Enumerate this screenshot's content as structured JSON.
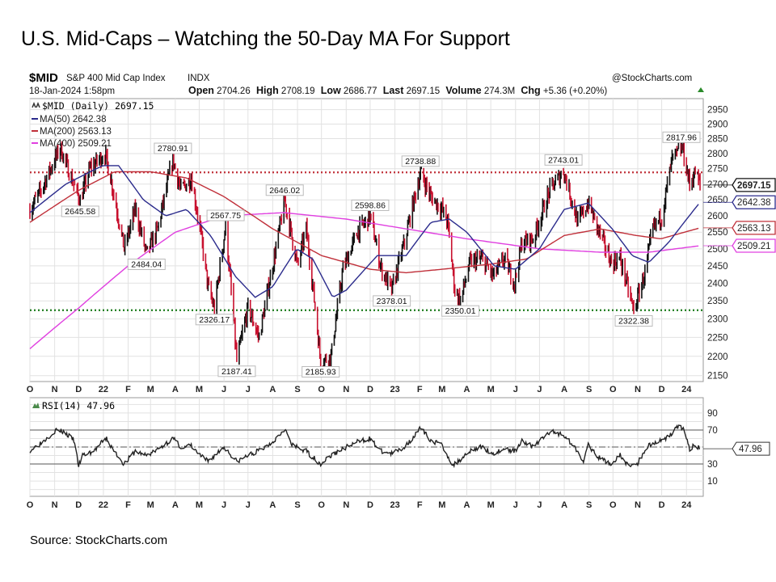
{
  "slide": {
    "title": "U.S. Mid-Caps – Watching the 50-Day MA For Support",
    "source": "Source: StockCharts.com"
  },
  "chart_header": {
    "symbol": "$MID",
    "name": "S&P 400 Mid Cap Index",
    "exchange": "INDX",
    "datetime": "18-Jan-2024 1:58pm",
    "open_label": "Open",
    "open": "2704.26",
    "high_label": "High",
    "high": "2708.19",
    "low_label": "Low",
    "low": "2686.77",
    "last_label": "Last",
    "last": "2697.15",
    "volume_label": "Volume",
    "volume": "274.3M",
    "chg_label": "Chg",
    "chg": "+5.36 (+0.20%)",
    "watermark": "@StockCharts.com"
  },
  "colors": {
    "up_bar": "#111111",
    "down_bar": "#c8102e",
    "ma50": "#2b2b8c",
    "ma200": "#c0303a",
    "ma400": "#e040e0",
    "resistance": "#c0303a",
    "support": "#1a7a1a",
    "grid": "#e2e2e2",
    "rsi": "#222222"
  },
  "chart_data": [
    {
      "type": "line",
      "subtype": "ohlc-price-with-moving-averages",
      "y_scale": "log",
      "ylim": [
        2135,
        2989
      ],
      "xlim": [
        "2021-10-01",
        "2024-01-22"
      ],
      "grid": true,
      "legend_placement": "top-left",
      "legend": [
        {
          "label": "$MID (Daily) 2697.15",
          "icon": "ohlc-icon"
        },
        {
          "label": "MA(50) 2642.38",
          "color": "#2b2b8c"
        },
        {
          "label": "MA(200) 2563.13",
          "color": "#c0303a"
        },
        {
          "label": "MA(400) 2509.21",
          "color": "#e040e0"
        }
      ],
      "y_ticks": [
        "2150",
        "2200",
        "2250",
        "2300",
        "2350",
        "2400",
        "2450",
        "2500",
        "2550",
        "2600",
        "2650",
        "2700",
        "2750",
        "2800",
        "2850",
        "2900",
        "2950"
      ],
      "x_ticks": [
        {
          "label": "O",
          "date": "2021-10-01"
        },
        {
          "label": "N",
          "date": "2021-11-01"
        },
        {
          "label": "D",
          "date": "2021-12-01"
        },
        {
          "label": "22",
          "date": "2022-01-01"
        },
        {
          "label": "F",
          "date": "2022-02-01"
        },
        {
          "label": "M",
          "date": "2022-03-01"
        },
        {
          "label": "A",
          "date": "2022-04-01"
        },
        {
          "label": "M",
          "date": "2022-05-01"
        },
        {
          "label": "J",
          "date": "2022-06-01"
        },
        {
          "label": "J",
          "date": "2022-07-01"
        },
        {
          "label": "A",
          "date": "2022-08-01"
        },
        {
          "label": "S",
          "date": "2022-09-01"
        },
        {
          "label": "O",
          "date": "2022-10-01"
        },
        {
          "label": "N",
          "date": "2022-11-01"
        },
        {
          "label": "D",
          "date": "2022-12-01"
        },
        {
          "label": "23",
          "date": "2023-01-01"
        },
        {
          "label": "F",
          "date": "2023-02-01"
        },
        {
          "label": "M",
          "date": "2023-03-01"
        },
        {
          "label": "A",
          "date": "2023-04-01"
        },
        {
          "label": "M",
          "date": "2023-05-01"
        },
        {
          "label": "J",
          "date": "2023-06-01"
        },
        {
          "label": "J",
          "date": "2023-07-01"
        },
        {
          "label": "A",
          "date": "2023-08-01"
        },
        {
          "label": "S",
          "date": "2023-09-01"
        },
        {
          "label": "O",
          "date": "2023-10-01"
        },
        {
          "label": "N",
          "date": "2023-11-01"
        },
        {
          "label": "D",
          "date": "2023-12-01"
        },
        {
          "label": "24",
          "date": "2024-01-01"
        }
      ],
      "price": [
        [
          "2021-10-01",
          2620
        ],
        [
          "2021-10-15",
          2680
        ],
        [
          "2021-11-08",
          2820
        ],
        [
          "2021-11-26",
          2690
        ],
        [
          "2021-12-03",
          2646
        ],
        [
          "2021-12-15",
          2750
        ],
        [
          "2022-01-03",
          2800
        ],
        [
          "2022-01-10",
          2720
        ],
        [
          "2022-01-27",
          2500
        ],
        [
          "2022-02-10",
          2620
        ],
        [
          "2022-02-24",
          2484
        ],
        [
          "2022-03-10",
          2560
        ],
        [
          "2022-03-29",
          2780
        ],
        [
          "2022-04-08",
          2680
        ],
        [
          "2022-04-21",
          2720
        ],
        [
          "2022-05-02",
          2560
        ],
        [
          "2022-05-12",
          2390
        ],
        [
          "2022-05-20",
          2326
        ],
        [
          "2022-06-03",
          2567
        ],
        [
          "2022-06-17",
          2187
        ],
        [
          "2022-07-01",
          2330
        ],
        [
          "2022-07-15",
          2250
        ],
        [
          "2022-08-01",
          2450
        ],
        [
          "2022-08-16",
          2646
        ],
        [
          "2022-09-01",
          2450
        ],
        [
          "2022-09-12",
          2560
        ],
        [
          "2022-09-30",
          2186
        ],
        [
          "2022-10-13",
          2200
        ],
        [
          "2022-10-28",
          2440
        ],
        [
          "2022-11-15",
          2550
        ],
        [
          "2022-12-01",
          2598
        ],
        [
          "2022-12-15",
          2440
        ],
        [
          "2022-12-28",
          2378
        ],
        [
          "2023-01-13",
          2520
        ],
        [
          "2023-02-02",
          2738
        ],
        [
          "2023-02-15",
          2660
        ],
        [
          "2023-03-01",
          2620
        ],
        [
          "2023-03-08",
          2580
        ],
        [
          "2023-03-17",
          2380
        ],
        [
          "2023-03-24",
          2350
        ],
        [
          "2023-04-05",
          2460
        ],
        [
          "2023-04-20",
          2470
        ],
        [
          "2023-05-04",
          2420
        ],
        [
          "2023-05-18",
          2470
        ],
        [
          "2023-05-31",
          2400
        ],
        [
          "2023-06-09",
          2520
        ],
        [
          "2023-06-23",
          2530
        ],
        [
          "2023-07-14",
          2680
        ],
        [
          "2023-07-31",
          2743
        ],
        [
          "2023-08-18",
          2580
        ],
        [
          "2023-08-31",
          2640
        ],
        [
          "2023-09-12",
          2560
        ],
        [
          "2023-09-29",
          2460
        ],
        [
          "2023-10-10",
          2470
        ],
        [
          "2023-10-27",
          2322
        ],
        [
          "2023-11-10",
          2430
        ],
        [
          "2023-11-20",
          2560
        ],
        [
          "2023-12-01",
          2600
        ],
        [
          "2023-12-14",
          2780
        ],
        [
          "2023-12-27",
          2818
        ],
        [
          "2024-01-05",
          2700
        ],
        [
          "2024-01-12",
          2740
        ],
        [
          "2024-01-18",
          2697
        ]
      ],
      "ma50": [
        [
          "2021-10-01",
          2610
        ],
        [
          "2021-11-15",
          2700
        ],
        [
          "2021-12-31",
          2760
        ],
        [
          "2022-01-20",
          2760
        ],
        [
          "2022-02-20",
          2650
        ],
        [
          "2022-03-20",
          2600
        ],
        [
          "2022-04-15",
          2620
        ],
        [
          "2022-05-15",
          2540
        ],
        [
          "2022-06-15",
          2420
        ],
        [
          "2022-07-10",
          2360
        ],
        [
          "2022-08-01",
          2390
        ],
        [
          "2022-08-31",
          2500
        ],
        [
          "2022-09-20",
          2470
        ],
        [
          "2022-10-15",
          2360
        ],
        [
          "2022-11-01",
          2380
        ],
        [
          "2022-12-10",
          2480
        ],
        [
          "2023-01-15",
          2480
        ],
        [
          "2023-02-15",
          2580
        ],
        [
          "2023-03-10",
          2590
        ],
        [
          "2023-04-01",
          2550
        ],
        [
          "2023-05-05",
          2450
        ],
        [
          "2023-06-01",
          2440
        ],
        [
          "2023-07-01",
          2500
        ],
        [
          "2023-08-01",
          2620
        ],
        [
          "2023-08-31",
          2640
        ],
        [
          "2023-09-30",
          2560
        ],
        [
          "2023-10-25",
          2480
        ],
        [
          "2023-11-15",
          2460
        ],
        [
          "2023-12-10",
          2520
        ],
        [
          "2024-01-18",
          2642.38
        ]
      ],
      "ma200": [
        [
          "2021-10-01",
          2580
        ],
        [
          "2021-12-01",
          2680
        ],
        [
          "2022-01-15",
          2740
        ],
        [
          "2022-03-01",
          2740
        ],
        [
          "2022-04-15",
          2720
        ],
        [
          "2022-06-01",
          2660
        ],
        [
          "2022-08-01",
          2560
        ],
        [
          "2022-10-01",
          2480
        ],
        [
          "2022-12-01",
          2440
        ],
        [
          "2023-01-15",
          2430
        ],
        [
          "2023-03-01",
          2440
        ],
        [
          "2023-05-01",
          2455
        ],
        [
          "2023-06-15",
          2470
        ],
        [
          "2023-08-01",
          2540
        ],
        [
          "2023-09-15",
          2560
        ],
        [
          "2023-10-30",
          2540
        ],
        [
          "2023-11-30",
          2530
        ],
        [
          "2024-01-18",
          2563.13
        ]
      ],
      "ma400": [
        [
          "2021-10-01",
          2220
        ],
        [
          "2021-12-01",
          2330
        ],
        [
          "2022-02-01",
          2450
        ],
        [
          "2022-04-01",
          2550
        ],
        [
          "2022-06-01",
          2600
        ],
        [
          "2022-08-15",
          2610
        ],
        [
          "2022-11-01",
          2590
        ],
        [
          "2023-01-15",
          2560
        ],
        [
          "2023-04-01",
          2530
        ],
        [
          "2023-07-01",
          2500
        ],
        [
          "2023-09-15",
          2490
        ],
        [
          "2023-11-15",
          2490
        ],
        [
          "2024-01-18",
          2509.21
        ]
      ],
      "horizontal_lines": [
        {
          "value": 2738,
          "style": "dotted",
          "color": "#c0303a"
        },
        {
          "value": 2324,
          "style": "dotted",
          "color": "#1a7a1a"
        }
      ],
      "annotations": [
        {
          "text": "2645.58",
          "date": "2021-12-03",
          "position": "below"
        },
        {
          "text": "2780.91",
          "date": "2022-03-29",
          "position": "above"
        },
        {
          "text": "2484.04",
          "date": "2022-02-24",
          "position": "below"
        },
        {
          "text": "2567.75",
          "date": "2022-06-03",
          "position": "above"
        },
        {
          "text": "2326.17",
          "date": "2022-05-20",
          "position": "below"
        },
        {
          "text": "2187.41",
          "date": "2022-06-17",
          "position": "below"
        },
        {
          "text": "2646.02",
          "date": "2022-08-16",
          "position": "above"
        },
        {
          "text": "2185.93",
          "date": "2022-09-30",
          "position": "below"
        },
        {
          "text": "2598.86",
          "date": "2022-12-01",
          "position": "above"
        },
        {
          "text": "2378.01",
          "date": "2022-12-28",
          "position": "below"
        },
        {
          "text": "2738.88",
          "date": "2023-02-02",
          "position": "above"
        },
        {
          "text": "2350.01",
          "date": "2023-03-24",
          "position": "below"
        },
        {
          "text": "2743.01",
          "date": "2023-07-31",
          "position": "above"
        },
        {
          "text": "2322.38",
          "date": "2023-10-27",
          "position": "below"
        },
        {
          "text": "2817.96",
          "date": "2023-12-27",
          "position": "above"
        }
      ],
      "value_tags": [
        {
          "text": "2697.15",
          "color": "#111111",
          "value": 2697.15
        },
        {
          "text": "2642.38",
          "color": "#2b2b8c",
          "value": 2642.38
        },
        {
          "text": "2563.13",
          "color": "#c0303a",
          "value": 2563.13
        },
        {
          "text": "2509.21",
          "color": "#e040e0",
          "value": 2509.21
        }
      ]
    },
    {
      "type": "line",
      "subtype": "rsi",
      "legend": "RSI(14) 47.96",
      "ylim": [
        -8,
        108
      ],
      "y_ticks": [
        "90",
        "70",
        "30",
        "10"
      ],
      "reference_lines": [
        70,
        50,
        30
      ],
      "value_tag": "47.96",
      "rsi": [
        [
          "2021-10-01",
          46
        ],
        [
          "2021-10-15",
          55
        ],
        [
          "2021-11-03",
          70
        ],
        [
          "2021-11-12",
          68
        ],
        [
          "2021-11-25",
          58
        ],
        [
          "2021-12-01",
          28
        ],
        [
          "2021-12-06",
          40
        ],
        [
          "2021-12-20",
          45
        ],
        [
          "2021-12-30",
          55
        ],
        [
          "2022-01-05",
          60
        ],
        [
          "2022-01-12",
          48
        ],
        [
          "2022-01-27",
          30
        ],
        [
          "2022-02-10",
          45
        ],
        [
          "2022-02-24",
          40
        ],
        [
          "2022-03-10",
          47
        ],
        [
          "2022-03-29",
          60
        ],
        [
          "2022-04-10",
          48
        ],
        [
          "2022-04-20",
          52
        ],
        [
          "2022-05-02",
          40
        ],
        [
          "2022-05-12",
          33
        ],
        [
          "2022-06-01",
          50
        ],
        [
          "2022-06-17",
          33
        ],
        [
          "2022-07-01",
          40
        ],
        [
          "2022-07-20",
          48
        ],
        [
          "2022-08-03",
          58
        ],
        [
          "2022-08-16",
          72
        ],
        [
          "2022-08-25",
          52
        ],
        [
          "2022-09-12",
          45
        ],
        [
          "2022-09-30",
          30
        ],
        [
          "2022-10-10",
          38
        ],
        [
          "2022-10-28",
          48
        ],
        [
          "2022-11-15",
          56
        ],
        [
          "2022-11-30",
          60
        ],
        [
          "2022-12-15",
          45
        ],
        [
          "2022-12-28",
          42
        ],
        [
          "2023-01-13",
          50
        ],
        [
          "2023-02-02",
          72
        ],
        [
          "2023-02-15",
          58
        ],
        [
          "2023-03-01",
          52
        ],
        [
          "2023-03-15",
          28
        ],
        [
          "2023-04-05",
          46
        ],
        [
          "2023-04-20",
          50
        ],
        [
          "2023-05-04",
          42
        ],
        [
          "2023-05-18",
          48
        ],
        [
          "2023-05-31",
          45
        ],
        [
          "2023-06-09",
          58
        ],
        [
          "2023-06-23",
          50
        ],
        [
          "2023-07-14",
          68
        ],
        [
          "2023-07-31",
          65
        ],
        [
          "2023-08-18",
          45
        ],
        [
          "2023-08-25",
          34
        ],
        [
          "2023-08-31",
          52
        ],
        [
          "2023-09-12",
          38
        ],
        [
          "2023-09-29",
          30
        ],
        [
          "2023-10-10",
          40
        ],
        [
          "2023-10-20",
          28
        ],
        [
          "2023-11-01",
          31
        ],
        [
          "2023-11-14",
          52
        ],
        [
          "2023-12-01",
          58
        ],
        [
          "2023-12-14",
          66
        ],
        [
          "2023-12-20",
          75
        ],
        [
          "2023-12-29",
          70
        ],
        [
          "2024-01-05",
          47
        ],
        [
          "2024-01-10",
          52
        ],
        [
          "2024-01-18",
          47.96
        ]
      ]
    }
  ]
}
